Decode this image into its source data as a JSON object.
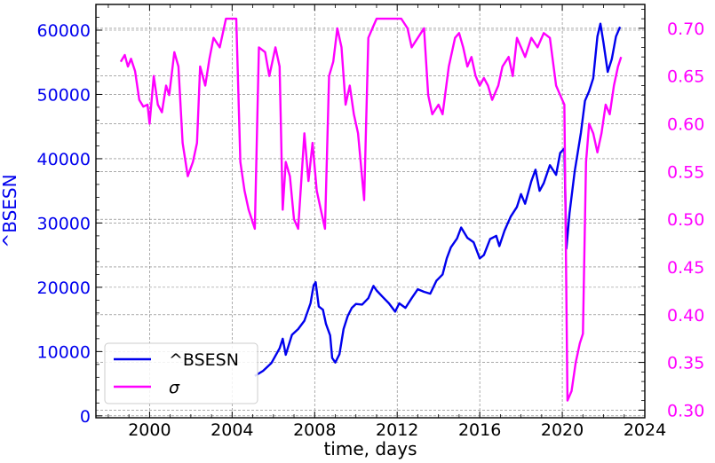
{
  "chart_data": {
    "type": "line",
    "xlabel": "time, days",
    "ylabel_left": "^BSESN",
    "xlim": [
      1997.4,
      2024.0
    ],
    "ylim_left": [
      -300,
      64000
    ],
    "ylim_right": [
      0.292,
      0.725
    ],
    "x_ticks": [
      2000,
      2004,
      2008,
      2012,
      2016,
      2020,
      2024
    ],
    "y_ticks_left": [
      0,
      10000,
      20000,
      30000,
      40000,
      50000,
      60000
    ],
    "y_ticks_right": [
      0.3,
      0.35,
      0.4,
      0.45,
      0.5,
      0.55,
      0.6,
      0.65,
      0.7
    ],
    "grid": true,
    "legend_position": "lower-left",
    "series": [
      {
        "name": "^BSESN",
        "axis": "left",
        "color": "#0000ee",
        "points": [
          [
            2005.1,
            6200
          ],
          [
            2005.5,
            7000
          ],
          [
            2005.9,
            8200
          ],
          [
            2006.3,
            10500
          ],
          [
            2006.45,
            12000
          ],
          [
            2006.6,
            9500
          ],
          [
            2006.9,
            12600
          ],
          [
            2007.2,
            13500
          ],
          [
            2007.5,
            14800
          ],
          [
            2007.8,
            17500
          ],
          [
            2007.95,
            20300
          ],
          [
            2008.05,
            20800
          ],
          [
            2008.2,
            17000
          ],
          [
            2008.4,
            16500
          ],
          [
            2008.55,
            14300
          ],
          [
            2008.75,
            12500
          ],
          [
            2008.85,
            9000
          ],
          [
            2009.0,
            8300
          ],
          [
            2009.2,
            9600
          ],
          [
            2009.4,
            13500
          ],
          [
            2009.6,
            15500
          ],
          [
            2009.8,
            16800
          ],
          [
            2010.0,
            17400
          ],
          [
            2010.3,
            17300
          ],
          [
            2010.6,
            18300
          ],
          [
            2010.85,
            20200
          ],
          [
            2011.0,
            19500
          ],
          [
            2011.3,
            18500
          ],
          [
            2011.6,
            17500
          ],
          [
            2011.9,
            16200
          ],
          [
            2012.1,
            17500
          ],
          [
            2012.4,
            16800
          ],
          [
            2012.7,
            18300
          ],
          [
            2013.0,
            19700
          ],
          [
            2013.3,
            19300
          ],
          [
            2013.6,
            19000
          ],
          [
            2013.9,
            21000
          ],
          [
            2014.2,
            22000
          ],
          [
            2014.4,
            24500
          ],
          [
            2014.6,
            26200
          ],
          [
            2014.9,
            27600
          ],
          [
            2015.1,
            29300
          ],
          [
            2015.4,
            27700
          ],
          [
            2015.7,
            27000
          ],
          [
            2016.0,
            24500
          ],
          [
            2016.2,
            25000
          ],
          [
            2016.5,
            27500
          ],
          [
            2016.8,
            28000
          ],
          [
            2016.95,
            26400
          ],
          [
            2017.2,
            28800
          ],
          [
            2017.5,
            31000
          ],
          [
            2017.8,
            32500
          ],
          [
            2018.0,
            34500
          ],
          [
            2018.2,
            33000
          ],
          [
            2018.5,
            36500
          ],
          [
            2018.7,
            38300
          ],
          [
            2018.9,
            35000
          ],
          [
            2019.1,
            36200
          ],
          [
            2019.4,
            39000
          ],
          [
            2019.7,
            37500
          ],
          [
            2019.9,
            40900
          ],
          [
            2020.1,
            41600
          ],
          [
            2020.2,
            26000
          ],
          [
            2020.35,
            31500
          ],
          [
            2020.6,
            38000
          ],
          [
            2020.9,
            44000
          ],
          [
            2021.1,
            49000
          ],
          [
            2021.3,
            50500
          ],
          [
            2021.5,
            52500
          ],
          [
            2021.7,
            59000
          ],
          [
            2021.85,
            61000
          ],
          [
            2022.0,
            58000
          ],
          [
            2022.2,
            53500
          ],
          [
            2022.4,
            55500
          ],
          [
            2022.6,
            59000
          ],
          [
            2022.8,
            60500
          ]
        ]
      },
      {
        "name": "σ",
        "axis": "right",
        "color": "#ff00ff",
        "points": [
          [
            1998.6,
            0.665
          ],
          [
            1998.8,
            0.672
          ],
          [
            1998.95,
            0.66
          ],
          [
            1999.1,
            0.668
          ],
          [
            1999.3,
            0.655
          ],
          [
            1999.5,
            0.625
          ],
          [
            1999.7,
            0.618
          ],
          [
            1999.9,
            0.62
          ],
          [
            2000.0,
            0.6
          ],
          [
            2000.2,
            0.65
          ],
          [
            2000.4,
            0.62
          ],
          [
            2000.6,
            0.612
          ],
          [
            2000.8,
            0.64
          ],
          [
            2000.95,
            0.63
          ],
          [
            2001.2,
            0.675
          ],
          [
            2001.4,
            0.66
          ],
          [
            2001.6,
            0.58
          ],
          [
            2001.85,
            0.545
          ],
          [
            2002.1,
            0.56
          ],
          [
            2002.3,
            0.58
          ],
          [
            2002.45,
            0.66
          ],
          [
            2002.7,
            0.64
          ],
          [
            2002.9,
            0.668
          ],
          [
            2003.1,
            0.69
          ],
          [
            2003.4,
            0.68
          ],
          [
            2003.7,
            0.71
          ],
          [
            2004.0,
            0.71
          ],
          [
            2004.2,
            0.71
          ],
          [
            2004.4,
            0.56
          ],
          [
            2004.6,
            0.53
          ],
          [
            2004.8,
            0.51
          ],
          [
            2005.1,
            0.49
          ],
          [
            2005.3,
            0.68
          ],
          [
            2005.6,
            0.675
          ],
          [
            2005.8,
            0.65
          ],
          [
            2006.1,
            0.68
          ],
          [
            2006.3,
            0.66
          ],
          [
            2006.45,
            0.51
          ],
          [
            2006.6,
            0.56
          ],
          [
            2006.8,
            0.545
          ],
          [
            2007.0,
            0.5
          ],
          [
            2007.2,
            0.49
          ],
          [
            2007.5,
            0.59
          ],
          [
            2007.7,
            0.54
          ],
          [
            2007.9,
            0.58
          ],
          [
            2008.1,
            0.53
          ],
          [
            2008.3,
            0.51
          ],
          [
            2008.5,
            0.49
          ],
          [
            2008.7,
            0.65
          ],
          [
            2008.9,
            0.665
          ],
          [
            2009.1,
            0.7
          ],
          [
            2009.3,
            0.68
          ],
          [
            2009.5,
            0.62
          ],
          [
            2009.7,
            0.64
          ],
          [
            2009.9,
            0.61
          ],
          [
            2010.1,
            0.59
          ],
          [
            2010.4,
            0.52
          ],
          [
            2010.6,
            0.69
          ],
          [
            2010.8,
            0.7
          ],
          [
            2011.0,
            0.71
          ],
          [
            2011.4,
            0.71
          ],
          [
            2011.8,
            0.71
          ],
          [
            2012.2,
            0.71
          ],
          [
            2012.5,
            0.7
          ],
          [
            2012.7,
            0.68
          ],
          [
            2013.0,
            0.69
          ],
          [
            2013.3,
            0.7
          ],
          [
            2013.5,
            0.63
          ],
          [
            2013.7,
            0.61
          ],
          [
            2014.0,
            0.62
          ],
          [
            2014.2,
            0.61
          ],
          [
            2014.5,
            0.66
          ],
          [
            2014.8,
            0.69
          ],
          [
            2015.0,
            0.695
          ],
          [
            2015.2,
            0.68
          ],
          [
            2015.4,
            0.66
          ],
          [
            2015.6,
            0.67
          ],
          [
            2015.8,
            0.65
          ],
          [
            2016.0,
            0.64
          ],
          [
            2016.2,
            0.648
          ],
          [
            2016.4,
            0.64
          ],
          [
            2016.6,
            0.625
          ],
          [
            2016.9,
            0.64
          ],
          [
            2017.1,
            0.66
          ],
          [
            2017.4,
            0.67
          ],
          [
            2017.6,
            0.65
          ],
          [
            2017.8,
            0.69
          ],
          [
            2018.0,
            0.68
          ],
          [
            2018.2,
            0.67
          ],
          [
            2018.5,
            0.69
          ],
          [
            2018.8,
            0.68
          ],
          [
            2019.1,
            0.695
          ],
          [
            2019.4,
            0.69
          ],
          [
            2019.7,
            0.64
          ],
          [
            2019.9,
            0.63
          ],
          [
            2020.1,
            0.62
          ],
          [
            2020.25,
            0.31
          ],
          [
            2020.45,
            0.32
          ],
          [
            2020.65,
            0.35
          ],
          [
            2020.85,
            0.37
          ],
          [
            2021.0,
            0.38
          ],
          [
            2021.15,
            0.56
          ],
          [
            2021.3,
            0.6
          ],
          [
            2021.5,
            0.59
          ],
          [
            2021.7,
            0.57
          ],
          [
            2021.9,
            0.59
          ],
          [
            2022.1,
            0.62
          ],
          [
            2022.3,
            0.61
          ],
          [
            2022.5,
            0.64
          ],
          [
            2022.7,
            0.66
          ],
          [
            2022.85,
            0.67
          ]
        ]
      }
    ]
  }
}
